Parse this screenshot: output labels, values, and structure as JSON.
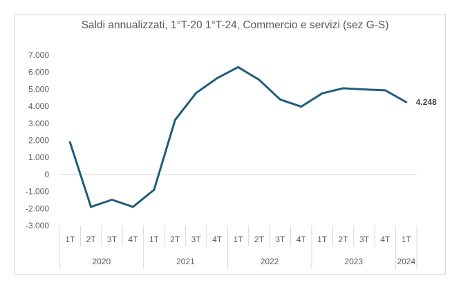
{
  "chart_data": {
    "type": "line",
    "title": "Saldi annualizzati,  1°T-20 1°T-24,  Commercio e servizi (sez G-S)",
    "xlabel": "",
    "ylabel": "",
    "ylim": [
      -3000,
      7000
    ],
    "yticks": [
      7000,
      6000,
      5000,
      4000,
      3000,
      2000,
      1000,
      0,
      -1000,
      -2000,
      -3000
    ],
    "ytick_labels": [
      "7.000",
      "6.000",
      "5.000",
      "4.000",
      "3.000",
      "2.000",
      "1.000",
      "0",
      "-1.000",
      "-2.000",
      "-3.000"
    ],
    "grid": false,
    "legend": "none",
    "line_color": "#1f5c7a",
    "categories": [
      "1T",
      "2T",
      "3T",
      "4T",
      "1T",
      "2T",
      "3T",
      "4T",
      "1T",
      "2T",
      "3T",
      "4T",
      "1T",
      "2T",
      "3T",
      "4T",
      "1T"
    ],
    "years": [
      {
        "label": "2020",
        "count": 4
      },
      {
        "label": "2021",
        "count": 4
      },
      {
        "label": "2022",
        "count": 4
      },
      {
        "label": "2023",
        "count": 4
      },
      {
        "label": "2024",
        "count": 1
      }
    ],
    "series": [
      {
        "values": [
          1900,
          -1900,
          -1480,
          -1900,
          -900,
          3200,
          4780,
          5650,
          6300,
          5560,
          4400,
          3980,
          4760,
          5060,
          4990,
          4940,
          4248
        ]
      }
    ],
    "data_labels": [
      {
        "index": 16,
        "text": "4.248"
      }
    ]
  }
}
